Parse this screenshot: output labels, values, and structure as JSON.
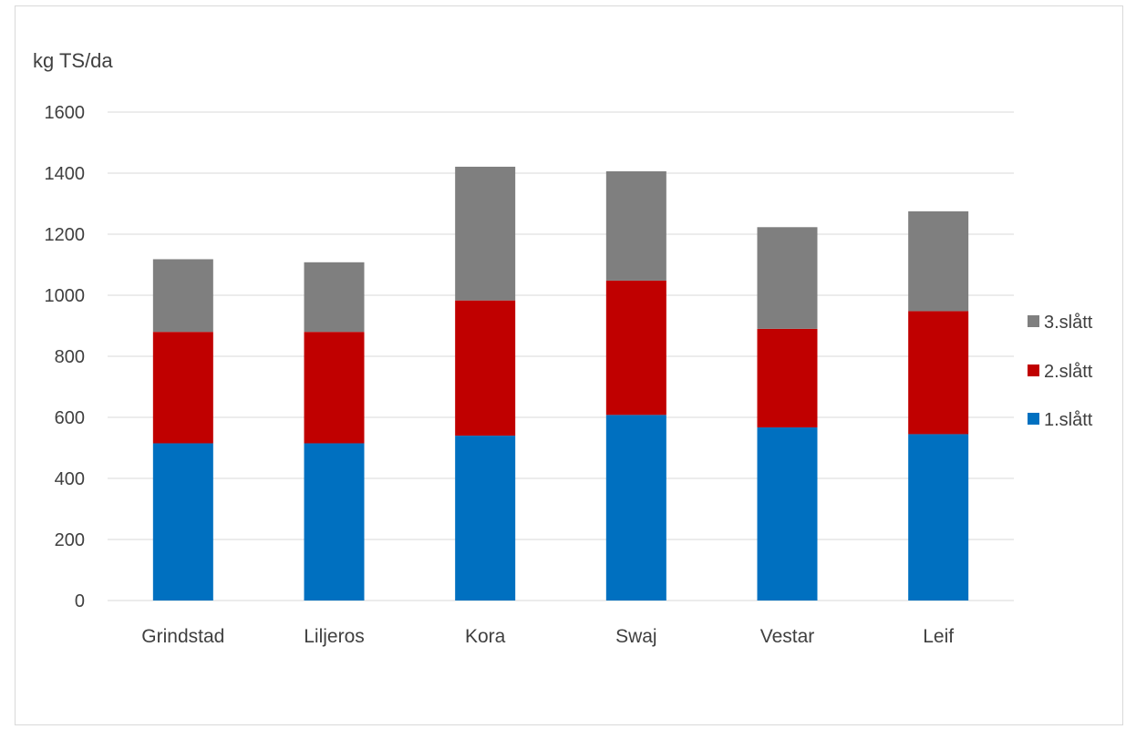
{
  "chart_data": {
    "type": "bar",
    "stacked": true,
    "ylabel": "kg TS/da",
    "ylim": [
      0,
      1600
    ],
    "yticks": [
      0,
      200,
      400,
      600,
      800,
      1000,
      1200,
      1400,
      1600
    ],
    "grid": true,
    "legend_position": "right",
    "categories": [
      "Grindstad",
      "Liljeros",
      "Kora",
      "Swaj",
      "Vestar",
      "Leif"
    ],
    "series": [
      {
        "name": "1.slått",
        "color": "#0070c0",
        "values": [
          515,
          515,
          540,
          608,
          567,
          545
        ]
      },
      {
        "name": "2.slått",
        "color": "#c00000",
        "values": [
          365,
          365,
          443,
          440,
          323,
          403
        ]
      },
      {
        "name": "3.slått",
        "color": "#7f7f7f",
        "values": [
          238,
          228,
          438,
          358,
          333,
          327
        ]
      }
    ]
  }
}
